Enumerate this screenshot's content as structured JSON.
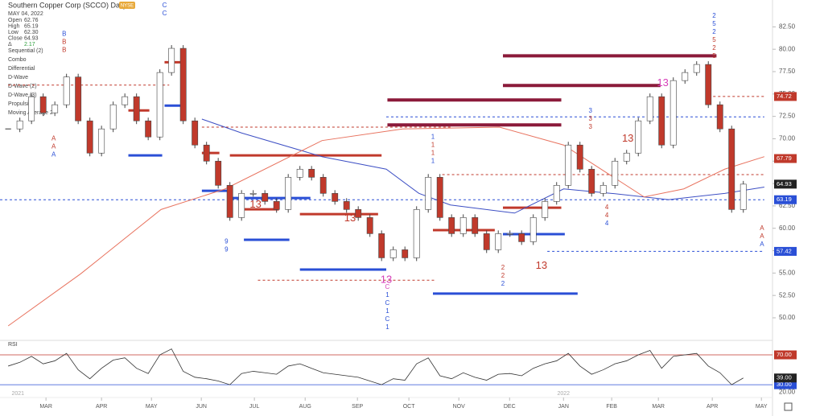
{
  "header": {
    "title": "Southern Copper Corp (SCCO) Daily",
    "exchange": "NYSE",
    "date": "MAY 04, 2022",
    "ohlc": [
      {
        "label": "Open",
        "value": "62.76"
      },
      {
        "label": "High",
        "value": "65.19"
      },
      {
        "label": "Low",
        "value": "62.30"
      },
      {
        "label": "Close",
        "value": "64.93"
      },
      {
        "label": "Δ",
        "value": "2.17"
      }
    ],
    "indicators": [
      "Sequential (2)",
      "Combo",
      "Differential",
      "D-Wave",
      "D-Wave (2)",
      "D-Wave (3)",
      "Propulsion",
      "Moving Average 2"
    ]
  },
  "chart_data": {
    "type": "candlestick",
    "x": [
      0,
      1,
      2,
      3,
      4,
      5,
      6,
      7,
      8,
      9,
      10,
      11,
      12,
      13,
      14,
      15,
      16,
      17,
      18,
      19,
      20,
      21,
      22,
      23,
      24,
      25,
      26,
      27,
      28,
      29,
      30,
      31,
      32,
      33,
      34,
      35,
      36,
      37,
      38,
      39,
      40,
      41,
      42,
      43,
      44,
      45,
      46,
      47,
      48,
      49,
      50,
      51,
      52,
      53,
      54,
      55,
      56,
      57,
      58,
      59,
      60,
      61,
      62,
      63
    ],
    "closes": [
      71.1,
      72,
      74.7,
      72.9,
      73.8,
      76.9,
      72,
      68.4,
      71.1,
      73.8,
      74.7,
      72,
      70.2,
      77.4,
      80.1,
      72,
      69.3,
      67.5,
      64.8,
      61.2,
      63.9,
      63.9,
      63,
      62.1,
      65.7,
      66.6,
      65.7,
      63.9,
      63,
      62.1,
      61.2,
      59.4,
      56.7,
      57.6,
      56.7,
      62.1,
      65.7,
      61.2,
      59.4,
      61.2,
      59.4,
      57.6,
      59.4,
      59.4,
      58.5,
      61.2,
      63,
      64.8,
      69.3,
      66.6,
      63.9,
      64.8,
      67.5,
      68.4,
      72,
      74.7,
      69.3,
      76.5,
      77.4,
      78.3,
      73.8,
      71.1,
      62.1,
      64.93
    ],
    "up_color": "#ffffff",
    "down_color": "#c0392b",
    "xlim": [
      -0.7,
      65.5
    ],
    "ylim": [
      47.75,
      85.5
    ],
    "xticks": [
      {
        "value": 3.24,
        "label": "MAR"
      },
      {
        "value": 8,
        "label": "APR"
      },
      {
        "value": 12.28,
        "label": "MAY"
      },
      {
        "value": 16.55,
        "label": "JUN"
      },
      {
        "value": 21.1,
        "label": "JUL"
      },
      {
        "value": 25.45,
        "label": "AUG"
      },
      {
        "value": 29.93,
        "label": "SEP"
      },
      {
        "value": 34.34,
        "label": "OCT"
      },
      {
        "value": 38.62,
        "label": "NOV"
      },
      {
        "value": 42.97,
        "label": "DEC"
      },
      {
        "value": 47.59,
        "label": "JAN"
      },
      {
        "value": 51.72,
        "label": "FEB"
      },
      {
        "value": 55.72,
        "label": "MAR"
      },
      {
        "value": 60.34,
        "label": "APR"
      },
      {
        "value": 64.55,
        "label": "MAY"
      }
    ],
    "years": [
      {
        "value": 0.3,
        "label": "2021"
      },
      {
        "value": 47.59,
        "label": "2022"
      }
    ],
    "yticks": [
      {
        "value": 82.5,
        "label": "82.50"
      },
      {
        "value": 80,
        "label": "80.00"
      },
      {
        "value": 77.5,
        "label": "77.50"
      },
      {
        "value": 75,
        "label": "75.00"
      },
      {
        "value": 72.5,
        "label": "72.50"
      },
      {
        "value": 70,
        "label": "70.00"
      },
      {
        "value": 67.5,
        "label": "67.50"
      },
      {
        "value": 65,
        "label": "65.00"
      },
      {
        "value": 62.5,
        "label": "62.50"
      },
      {
        "value": 60,
        "label": "60.00"
      },
      {
        "value": 57.5,
        "label": "57.50"
      },
      {
        "value": 55,
        "label": "55.00"
      },
      {
        "value": 52.5,
        "label": "52.50"
      },
      {
        "value": 50,
        "label": "50.00"
      }
    ],
    "price_tags": [
      {
        "value": 74.72,
        "color": "#c0392b"
      },
      {
        "value": 67.79,
        "color": "#c0392b"
      },
      {
        "value": 64.93,
        "color": "#222222"
      },
      {
        "value": 63.19,
        "color": "#2a4fd6"
      },
      {
        "value": 57.42,
        "color": "#2a4fd6"
      }
    ],
    "moving_averages": [
      {
        "color": "#3d4fc4",
        "x": [
          16.6,
          20,
          26.9,
          32.4,
          35.2,
          37.9,
          43.4,
          47.6,
          51.7,
          56.6,
          61.4,
          64.8
        ],
        "values": [
          72.2,
          70.65,
          68,
          66.6,
          63.9,
          62.6,
          61.7,
          64.4,
          63.9,
          63.2,
          63.9,
          64.6
        ]
      },
      {
        "color": "#e8735f",
        "x": [
          0,
          6.2,
          13.1,
          18.6,
          26.9,
          33.8,
          42.1,
          47.6,
          54.5,
          57.9,
          61.4,
          64.8
        ],
        "values": [
          49.1,
          54.9,
          62.1,
          64.4,
          69.8,
          71.1,
          71.3,
          69.3,
          63.5,
          64.4,
          66.6,
          68
        ]
      }
    ],
    "levels": [
      {
        "value": 79.27,
        "x": [
          42.4,
          60.7
        ],
        "color": "#8b1a3a",
        "width": 4
      },
      {
        "value": 75.95,
        "x": [
          42.4,
          55.9
        ],
        "color": "#8b1a3a",
        "width": 4
      },
      {
        "value": 74.33,
        "x": [
          32.5,
          47.4
        ],
        "color": "#8b1a3a",
        "width": 4
      },
      {
        "value": 71.55,
        "x": [
          32.5,
          47.4
        ],
        "color": "#8b1a3a",
        "width": 4
      },
      {
        "value": 68.14,
        "x": [
          19.0,
          32.0
        ],
        "color": "#c0392b",
        "width": 3
      },
      {
        "value": 68.14,
        "x": [
          10.3,
          13.2
        ],
        "color": "#2a4fd6",
        "width": 3
      },
      {
        "value": 73.7,
        "x": [
          13.4,
          14.8
        ],
        "color": "#2a4fd6",
        "width": 3
      },
      {
        "value": 64.19,
        "x": [
          16.6,
          19.0
        ],
        "color": "#2a4fd6",
        "width": 3
      },
      {
        "value": 63.38,
        "x": [
          19.0,
          25.9
        ],
        "color": "#2a4fd6",
        "width": 3
      },
      {
        "value": 58.71,
        "x": [
          20.2,
          24.1
        ],
        "color": "#2a4fd6",
        "width": 3
      },
      {
        "value": 55.39,
        "x": [
          25.0,
          32.4
        ],
        "color": "#2a4fd6",
        "width": 3
      },
      {
        "value": 52.7,
        "x": [
          36.4,
          48.8
        ],
        "color": "#2a4fd6",
        "width": 3
      },
      {
        "value": 59.34,
        "x": [
          42.4,
          47.7
        ],
        "color": "#2a4fd6",
        "width": 3
      },
      {
        "value": 73.16,
        "x": [
          10.3,
          12.1
        ],
        "color": "#c0392b",
        "width": 3
      },
      {
        "value": 78.55,
        "x": [
          13.4,
          14.8
        ],
        "color": "#c0392b",
        "width": 3
      },
      {
        "value": 68.41,
        "x": [
          16.6,
          18.1
        ],
        "color": "#c0392b",
        "width": 3
      },
      {
        "value": 62.12,
        "x": [
          20.0,
          23.2
        ],
        "color": "#c0392b",
        "width": 3
      },
      {
        "value": 61.58,
        "x": [
          25.0,
          31.7
        ],
        "color": "#c0392b",
        "width": 3
      },
      {
        "value": 62.3,
        "x": [
          42.4,
          47.4
        ],
        "color": "#c0392b",
        "width": 3
      },
      {
        "value": 59.79,
        "x": [
          36.4,
          41.7
        ],
        "color": "#c0392b",
        "width": 3
      },
      {
        "value": 63.19,
        "x": [
          -0.7,
          64.8
        ],
        "color": "#2a4fd6",
        "width": 1,
        "dashed": true
      },
      {
        "value": 57.42,
        "x": [
          46.2,
          64.8
        ],
        "color": "#2a4fd6",
        "width": 1,
        "dashed": true
      },
      {
        "value": 72.45,
        "x": [
          32.4,
          64.8
        ],
        "color": "#2a4fd6",
        "width": 1,
        "dashed": true
      },
      {
        "value": 74.72,
        "x": [
          60.0,
          64.8
        ],
        "color": "#c0392b",
        "width": 1,
        "dashed": true
      },
      {
        "value": 66.0,
        "x": [
          37.2,
          64.8
        ],
        "color": "#c0392b",
        "width": 1,
        "dashed": true
      },
      {
        "value": 71.3,
        "x": [
          16.6,
          37.9
        ],
        "color": "#c0392b",
        "width": 1,
        "dashed": true
      },
      {
        "value": 76.0,
        "x": [
          0,
          13.8
        ],
        "color": "#c0392b",
        "width": 1,
        "dashed": true
      },
      {
        "value": 54.2,
        "x": [
          21.4,
          36.6
        ],
        "color": "#c0392b",
        "width": 1,
        "dashed": true
      }
    ],
    "count_labels": [
      {
        "text": "13",
        "x": 21.2,
        "y": 62.6,
        "color": "#c0392b"
      },
      {
        "text": "13",
        "x": 29.3,
        "y": 61.1,
        "color": "#c0392b"
      },
      {
        "text": "13",
        "x": 32.4,
        "y": 54.2,
        "color": "#d63fb8"
      },
      {
        "text": "13",
        "x": 45.7,
        "y": 55.8,
        "color": "#c0392b"
      },
      {
        "text": "13",
        "x": 53.1,
        "y": 70.0,
        "color": "#c0392b"
      },
      {
        "text": "13",
        "x": 56.1,
        "y": 76.2,
        "color": "#d63fb8"
      }
    ],
    "stacks": [
      {
        "lines": [
          "B",
          "B",
          "B"
        ],
        "colors": [
          "#2a4fd6",
          "#c0392b",
          "#c0392b"
        ],
        "x": 4.8,
        "y": 81.7
      },
      {
        "lines": [
          "A",
          "A",
          "A"
        ],
        "colors": [
          "#c0392b",
          "#c0392b",
          "#2a4fd6"
        ],
        "x": 3.9,
        "y": 70.0
      },
      {
        "lines": [
          "C",
          "C"
        ],
        "colors": [
          "#2a4fd6",
          "#2a4fd6"
        ],
        "x": 13.4,
        "y": 84.9
      },
      {
        "lines": [
          "2",
          "5",
          "2",
          "5",
          "2",
          "5"
        ],
        "colors": [
          "#2a4fd6",
          "#2a4fd6",
          "#2a4fd6",
          "#c0392b",
          "#c0392b",
          "#c0392b"
        ],
        "x": 60.5,
        "y": 83.7
      },
      {
        "lines": [
          "1",
          "1",
          "1",
          "1"
        ],
        "colors": [
          "#2a4fd6",
          "#c0392b",
          "#c0392b",
          "#2a4fd6"
        ],
        "x": 36.4,
        "y": 70.2
      },
      {
        "lines": [
          "3",
          "3",
          "3"
        ],
        "colors": [
          "#2a4fd6",
          "#c0392b",
          "#c0392b"
        ],
        "x": 49.9,
        "y": 73.1
      },
      {
        "lines": [
          "4",
          "4",
          "4"
        ],
        "colors": [
          "#c0392b",
          "#c0392b",
          "#2a4fd6"
        ],
        "x": 51.3,
        "y": 62.3
      },
      {
        "lines": [
          "C",
          "1",
          "C",
          "1",
          "C",
          "1"
        ],
        "colors": [
          "#d63fb8",
          "#2a4fd6",
          "#2a4fd6",
          "#2a4fd6",
          "#2a4fd6",
          "#2a4fd6"
        ],
        "x": 32.5,
        "y": 53.4
      },
      {
        "lines": [
          "2",
          "2",
          "2"
        ],
        "colors": [
          "#c0392b",
          "#c0392b",
          "#2a4fd6"
        ],
        "x": 42.4,
        "y": 55.6
      },
      {
        "lines": [
          "A",
          "A",
          "A"
        ],
        "colors": [
          "#c0392b",
          "#c0392b",
          "#2a4fd6"
        ],
        "x": 64.6,
        "y": 60.0
      },
      {
        "lines": [
          "9",
          "9"
        ],
        "colors": [
          "#2a4fd6",
          "#2a4fd6"
        ],
        "x": 18.7,
        "y": 58.5
      }
    ],
    "rsi": {
      "label": "RSI",
      "color": "#333333",
      "ylim": [
        15,
        87.3
      ],
      "values": [
        55,
        60,
        68,
        58,
        62,
        72,
        50,
        38,
        52,
        63,
        66,
        52,
        45,
        70,
        78,
        48,
        40,
        38,
        35,
        30,
        45,
        48,
        46,
        44,
        55,
        58,
        52,
        46,
        44,
        42,
        40,
        35,
        30,
        38,
        36,
        58,
        66,
        42,
        38,
        46,
        40,
        36,
        44,
        45,
        42,
        52,
        58,
        62,
        72,
        55,
        44,
        50,
        58,
        62,
        70,
        76,
        52,
        68,
        70,
        72,
        55,
        46,
        30,
        39
      ],
      "levels": [
        {
          "value": 70,
          "label": "70.00",
          "color": "#c0392b"
        },
        {
          "value": 30,
          "label": "30.00",
          "color": "#2a4fd6"
        }
      ],
      "current": {
        "value": 39,
        "label": "39.00"
      },
      "yticks": [
        {
          "value": 20,
          "label": "20.00"
        }
      ]
    }
  }
}
